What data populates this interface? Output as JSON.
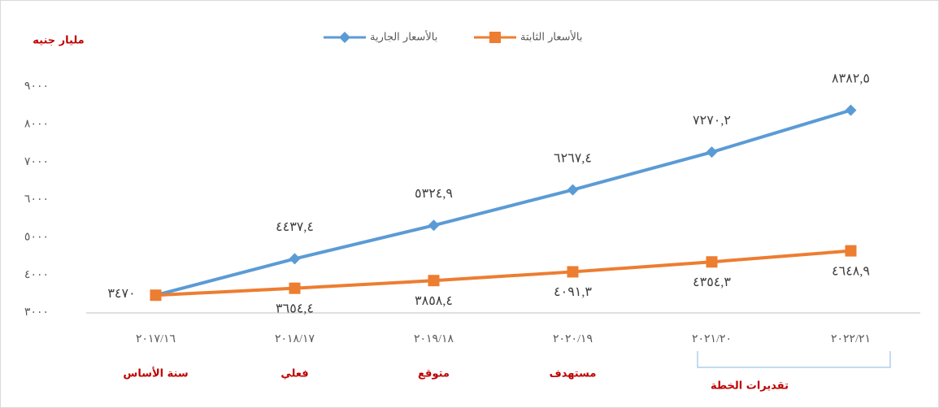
{
  "chart_data": {
    "type": "line",
    "y_label": "مليار جنيه",
    "categories": [
      "٢٠١٧/١٦",
      "٢٠١٨/١٧",
      "٢٠١٩/١٨",
      "٢٠٢٠/١٩",
      "٢٠٢١/٢٠",
      "٢٠٢٢/٢١"
    ],
    "category_notes": [
      "سنة الأساس",
      "فعلي",
      "متوقع",
      "مستهدف"
    ],
    "group_label": "تقديرات الخطة",
    "series": [
      {
        "name": "بالأسعار الجارية",
        "color": "#5b9bd5",
        "marker": "diamond",
        "values": [
          3470,
          4437.4,
          5324.9,
          6267.4,
          7270.2,
          8382.5
        ],
        "value_labels": [
          "٣٤٧٠",
          "٤٤٣٧,٤",
          "٥٣٢٤,٩",
          "٦٢٦٧,٤",
          "٧٢٧٠,٢",
          "٨٣٨٢,٥"
        ]
      },
      {
        "name": "بالأسعار الثابتة",
        "color": "#ed7d31",
        "marker": "square",
        "values": [
          3470,
          3654.4,
          3858.4,
          4091.3,
          4354.3,
          4648.9
        ],
        "value_labels": [
          null,
          "٣٦٥٤,٤",
          "٣٨٥٨,٤",
          "٤٠٩١,٣",
          "٤٣٥٤,٣",
          "٤٦٤٨,٩"
        ]
      }
    ],
    "ylim": [
      3000,
      9000
    ],
    "yticks": [
      {
        "value": 3000,
        "label": "٣٠٠٠"
      },
      {
        "value": 4000,
        "label": "٤٠٠٠"
      },
      {
        "value": 5000,
        "label": "٥٠٠٠"
      },
      {
        "value": 6000,
        "label": "٦٠٠٠"
      },
      {
        "value": 7000,
        "label": "٧٠٠٠"
      },
      {
        "value": 8000,
        "label": "٨٠٠٠"
      },
      {
        "value": 9000,
        "label": "٩٠٠٠"
      }
    ],
    "legend": "top"
  }
}
